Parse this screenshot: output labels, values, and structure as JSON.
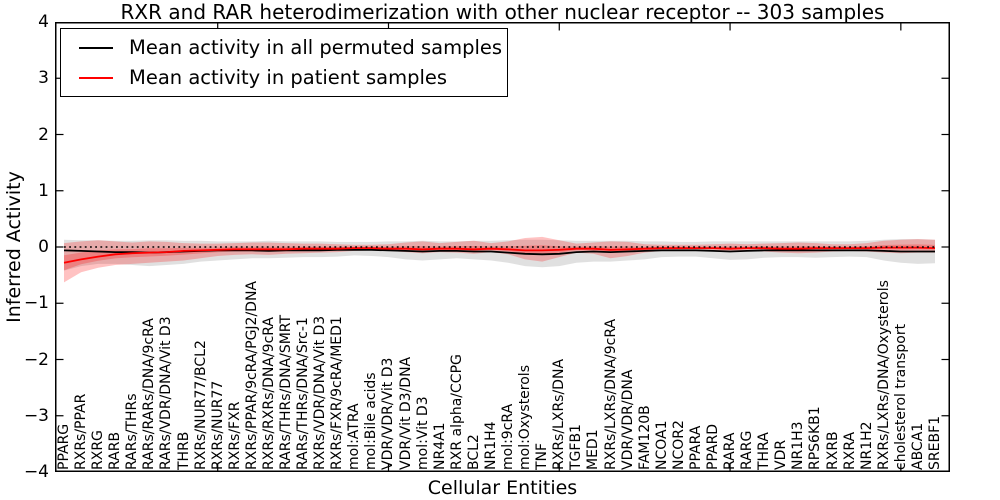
{
  "title": "RXR and RAR heterodimerization with other nuclear receptor -- 303 samples",
  "axes": {
    "ylabel": "Inferred Activity",
    "xlabel": "Cellular Entities",
    "ytick_labels": [
      "4",
      "3",
      "2",
      "1",
      "0",
      "−1",
      "−2",
      "−3",
      "−4"
    ],
    "ytick_values": [
      4,
      3,
      2,
      1,
      0,
      -1,
      -2,
      -3,
      -4
    ],
    "ylim": [
      -4,
      4
    ]
  },
  "legend": {
    "items": [
      {
        "label": "Mean activity in all permuted samples",
        "color": "#000000"
      },
      {
        "label": "Mean activity in patient samples",
        "color": "#ff0000"
      }
    ]
  },
  "colors": {
    "permuted_line": "#000000",
    "patient_line": "#ff0000",
    "permuted_band": "rgba(0,0,0,0.12)",
    "patient_band": "rgba(255,0,0,0.24)",
    "frame": "#000000"
  },
  "chart_data": {
    "type": "line",
    "title": "RXR and RAR heterodimerization with other nuclear receptor -- 303 samples",
    "xlabel": "Cellular Entities",
    "ylabel": "Inferred Activity",
    "ylim": [
      -4,
      4
    ],
    "grid": false,
    "legend_position": "upper left",
    "xtick_index_positions": [
      9,
      19,
      29,
      39,
      49
    ],
    "categories": [
      "PPARG",
      "RXRs/PPAR",
      "RXRG",
      "RARB",
      "RARs/THRs",
      "RARs/RARs/DNA/9cRA",
      "RARs/VDR/DNA/Vit D3",
      "THRB",
      "RXRs/NUR77/BCL2",
      "RXRs/NUR77",
      "RXRs/FXR",
      "RXRs/PPAR/9cRA/PGJ2/DNA",
      "RXRs/RXRs/DNA/9cRA",
      "RARs/THRs/DNA/SMRT",
      "RARs/THRs/DNA/Src-1",
      "RXRs/VDR/DNA/Vit D3",
      "RXRs/FXR/9cRA/MED1",
      "mol:ATRA",
      "mol:Bile acids",
      "VDR/VDR/Vit D3",
      "VDR/Vit D3/DNA",
      "mol:Vit D3",
      "NR4A1",
      "RXR alpha/CCPG",
      "BCL2",
      "NR1H4",
      "mol:9cRA",
      "mol:Oxysterols",
      "TNF",
      "RXRs/LXRs/DNA",
      "TGFB1",
      "MED1",
      "RXRs/LXRs/DNA/9cRA",
      "VDR/VDR/DNA",
      "FAM120B",
      "NCOA1",
      "NCOR2",
      "PPARA",
      "PPARD",
      "RARA",
      "RARG",
      "THRA",
      "VDR",
      "NR1H3",
      "RPS6KB1",
      "RXRB",
      "RXRA",
      "NR1H2",
      "RXRs/LXRs/DNA/Oxysterols",
      "cholesterol transport",
      "ABCA1",
      "SREBF1"
    ],
    "series": [
      {
        "name": "Mean activity in all permuted samples",
        "type": "line",
        "color": "#000000",
        "values": [
          -0.06,
          -0.07,
          -0.08,
          -0.09,
          -0.09,
          -0.1,
          -0.09,
          -0.08,
          -0.07,
          -0.06,
          -0.06,
          -0.06,
          -0.07,
          -0.06,
          -0.06,
          -0.06,
          -0.05,
          -0.05,
          -0.05,
          -0.06,
          -0.07,
          -0.08,
          -0.07,
          -0.07,
          -0.08,
          -0.08,
          -0.1,
          -0.12,
          -0.13,
          -0.12,
          -0.09,
          -0.08,
          -0.09,
          -0.08,
          -0.07,
          -0.06,
          -0.06,
          -0.06,
          -0.07,
          -0.08,
          -0.07,
          -0.06,
          -0.06,
          -0.06,
          -0.06,
          -0.06,
          -0.06,
          -0.06,
          -0.07,
          -0.08,
          -0.08,
          -0.08
        ]
      },
      {
        "name": "Mean activity in patient samples",
        "type": "line",
        "color": "#ff0000",
        "values": [
          -0.28,
          -0.22,
          -0.17,
          -0.13,
          -0.11,
          -0.1,
          -0.09,
          -0.07,
          -0.06,
          -0.05,
          -0.04,
          -0.04,
          -0.04,
          -0.04,
          -0.03,
          -0.03,
          -0.03,
          -0.02,
          -0.02,
          -0.03,
          -0.03,
          -0.04,
          -0.03,
          -0.03,
          -0.04,
          -0.03,
          -0.04,
          -0.06,
          -0.06,
          -0.05,
          -0.03,
          -0.03,
          -0.05,
          -0.04,
          -0.03,
          -0.02,
          -0.02,
          -0.02,
          -0.02,
          -0.03,
          -0.02,
          -0.02,
          -0.03,
          -0.03,
          -0.02,
          -0.02,
          -0.02,
          -0.02,
          -0.01,
          -0.01,
          -0.01,
          -0.02
        ]
      },
      {
        "name": "Permuted samples range",
        "type": "band",
        "color": "rgba(0,0,0,0.12)",
        "lower": [
          -0.42,
          -0.34,
          -0.3,
          -0.3,
          -0.32,
          -0.34,
          -0.32,
          -0.3,
          -0.26,
          -0.24,
          -0.22,
          -0.2,
          -0.2,
          -0.19,
          -0.18,
          -0.18,
          -0.17,
          -0.15,
          -0.16,
          -0.18,
          -0.22,
          -0.24,
          -0.22,
          -0.2,
          -0.22,
          -0.24,
          -0.28,
          -0.34,
          -0.36,
          -0.34,
          -0.28,
          -0.26,
          -0.26,
          -0.24,
          -0.22,
          -0.18,
          -0.17,
          -0.17,
          -0.2,
          -0.23,
          -0.22,
          -0.19,
          -0.18,
          -0.18,
          -0.19,
          -0.18,
          -0.17,
          -0.18,
          -0.24,
          -0.28,
          -0.3,
          -0.29
        ],
        "upper": [
          0.13,
          0.12,
          0.12,
          0.11,
          0.11,
          0.12,
          0.12,
          0.11,
          0.11,
          0.1,
          0.1,
          0.1,
          0.11,
          0.1,
          0.1,
          0.1,
          0.09,
          0.09,
          0.09,
          0.1,
          0.1,
          0.11,
          0.1,
          0.1,
          0.11,
          0.11,
          0.12,
          0.13,
          0.13,
          0.12,
          0.11,
          0.11,
          0.11,
          0.11,
          0.1,
          0.1,
          0.09,
          0.09,
          0.1,
          0.1,
          0.1,
          0.1,
          0.1,
          0.1,
          0.1,
          0.1,
          0.1,
          0.11,
          0.13,
          0.14,
          0.14,
          0.13
        ]
      },
      {
        "name": "Patient samples range",
        "type": "band",
        "color": "rgba(255,0,0,0.24)",
        "lower": [
          -0.63,
          -0.45,
          -0.37,
          -0.32,
          -0.3,
          -0.28,
          -0.26,
          -0.24,
          -0.2,
          -0.16,
          -0.14,
          -0.13,
          -0.14,
          -0.12,
          -0.11,
          -0.1,
          -0.09,
          -0.07,
          -0.06,
          -0.07,
          -0.09,
          -0.11,
          -0.09,
          -0.1,
          -0.12,
          -0.09,
          -0.13,
          -0.22,
          -0.26,
          -0.18,
          -0.1,
          -0.12,
          -0.2,
          -0.16,
          -0.1,
          -0.07,
          -0.07,
          -0.06,
          -0.07,
          -0.08,
          -0.07,
          -0.08,
          -0.1,
          -0.11,
          -0.1,
          -0.08,
          -0.07,
          -0.08,
          -0.1,
          -0.11,
          -0.1,
          -0.1
        ],
        "upper": [
          0.07,
          0.1,
          0.12,
          0.1,
          0.08,
          0.1,
          0.09,
          0.07,
          0.06,
          0.06,
          0.07,
          0.08,
          0.08,
          0.07,
          0.06,
          0.06,
          0.05,
          0.04,
          0.04,
          0.05,
          0.08,
          0.1,
          0.07,
          0.09,
          0.11,
          0.07,
          0.1,
          0.16,
          0.18,
          0.12,
          0.06,
          0.08,
          0.1,
          0.09,
          0.05,
          0.04,
          0.04,
          0.04,
          0.05,
          0.06,
          0.05,
          0.06,
          0.07,
          0.08,
          0.07,
          0.05,
          0.05,
          0.07,
          0.11,
          0.13,
          0.14,
          0.13
        ]
      },
      {
        "name": "Zero reference",
        "type": "dotted-line",
        "color": "#000000",
        "value": 0
      }
    ]
  }
}
